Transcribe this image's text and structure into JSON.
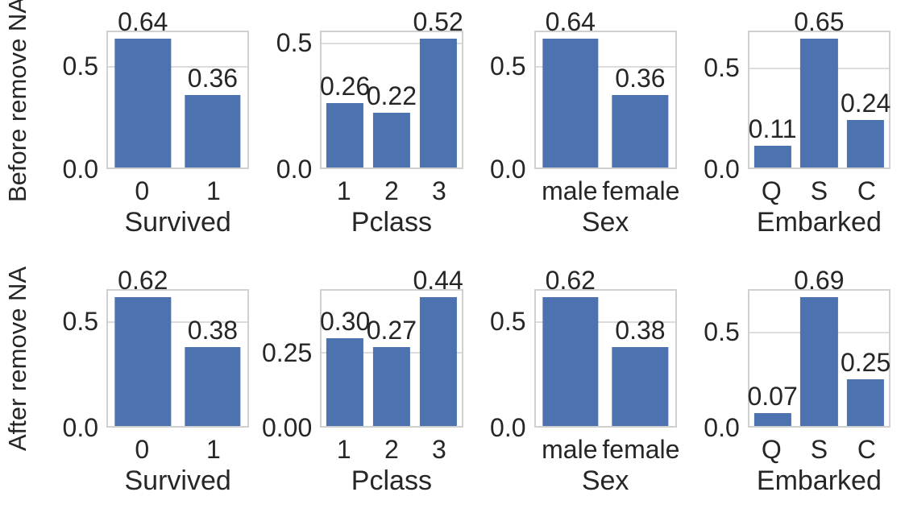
{
  "figure": {
    "row_labels": [
      "Before remove NA",
      "After remove NA"
    ],
    "bar_color": "#4c72b0",
    "frame_color": "#d0d0d0",
    "grid_color": "#dcdcdc",
    "text_color": "#262626",
    "background": "#ffffff",
    "grid_on": true,
    "layout": "2 rows x 4 columns of bar subplots"
  },
  "chart_data": [
    {
      "type": "bar",
      "row": 0,
      "row_label": "Before remove NA",
      "xlabel": "Survived",
      "categories": [
        "0",
        "1"
      ],
      "values": [
        0.64,
        0.36
      ],
      "bar_labels": [
        "0.64",
        "0.36"
      ],
      "ytick_values": [
        0,
        0.5
      ],
      "ytick_labels": [
        "0.0",
        "0.5"
      ],
      "ylim": [
        0,
        0.672
      ]
    },
    {
      "type": "bar",
      "row": 0,
      "row_label": "Before remove NA",
      "xlabel": "Pclass",
      "categories": [
        "1",
        "2",
        "3"
      ],
      "values": [
        0.26,
        0.22,
        0.52
      ],
      "bar_labels": [
        "0.26",
        "0.22",
        "0.52"
      ],
      "ytick_values": [
        0,
        0.5
      ],
      "ytick_labels": [
        "0.0",
        "0.5"
      ],
      "ylim": [
        0,
        0.546
      ]
    },
    {
      "type": "bar",
      "row": 0,
      "row_label": "Before remove NA",
      "xlabel": "Sex",
      "categories": [
        "male",
        "female"
      ],
      "values": [
        0.64,
        0.36
      ],
      "bar_labels": [
        "0.64",
        "0.36"
      ],
      "ytick_values": [
        0,
        0.5
      ],
      "ytick_labels": [
        "0.0",
        "0.5"
      ],
      "ylim": [
        0,
        0.672
      ]
    },
    {
      "type": "bar",
      "row": 0,
      "row_label": "Before remove NA",
      "xlabel": "Embarked",
      "categories": [
        "Q",
        "S",
        "C"
      ],
      "values": [
        0.11,
        0.65,
        0.24
      ],
      "bar_labels": [
        "0.11",
        "0.65",
        "0.24"
      ],
      "ytick_values": [
        0,
        0.5
      ],
      "ytick_labels": [
        "0.0",
        "0.5"
      ],
      "ylim": [
        0,
        0.6825
      ]
    },
    {
      "type": "bar",
      "row": 1,
      "row_label": "After remove NA",
      "xlabel": "Survived",
      "categories": [
        "0",
        "1"
      ],
      "values": [
        0.62,
        0.38
      ],
      "bar_labels": [
        "0.62",
        "0.38"
      ],
      "ytick_values": [
        0,
        0.5
      ],
      "ytick_labels": [
        "0.0",
        "0.5"
      ],
      "ylim": [
        0,
        0.651
      ]
    },
    {
      "type": "bar",
      "row": 1,
      "row_label": "After remove NA",
      "xlabel": "Pclass",
      "categories": [
        "1",
        "2",
        "3"
      ],
      "values": [
        0.3,
        0.27,
        0.44
      ],
      "bar_labels": [
        "0.30",
        "0.27",
        "0.44"
      ],
      "ytick_values": [
        0,
        0.25
      ],
      "ytick_labels": [
        "0.00",
        "0.25"
      ],
      "ylim": [
        0,
        0.462
      ]
    },
    {
      "type": "bar",
      "row": 1,
      "row_label": "After remove NA",
      "xlabel": "Sex",
      "categories": [
        "male",
        "female"
      ],
      "values": [
        0.62,
        0.38
      ],
      "bar_labels": [
        "0.62",
        "0.38"
      ],
      "ytick_values": [
        0,
        0.5
      ],
      "ytick_labels": [
        "0.0",
        "0.5"
      ],
      "ylim": [
        0,
        0.651
      ]
    },
    {
      "type": "bar",
      "row": 1,
      "row_label": "After remove NA",
      "xlabel": "Embarked",
      "categories": [
        "Q",
        "S",
        "C"
      ],
      "values": [
        0.07,
        0.69,
        0.25
      ],
      "bar_labels": [
        "0.07",
        "0.69",
        "0.25"
      ],
      "ytick_values": [
        0,
        0.5
      ],
      "ytick_labels": [
        "0.0",
        "0.5"
      ],
      "ylim": [
        0,
        0.7245
      ]
    }
  ]
}
